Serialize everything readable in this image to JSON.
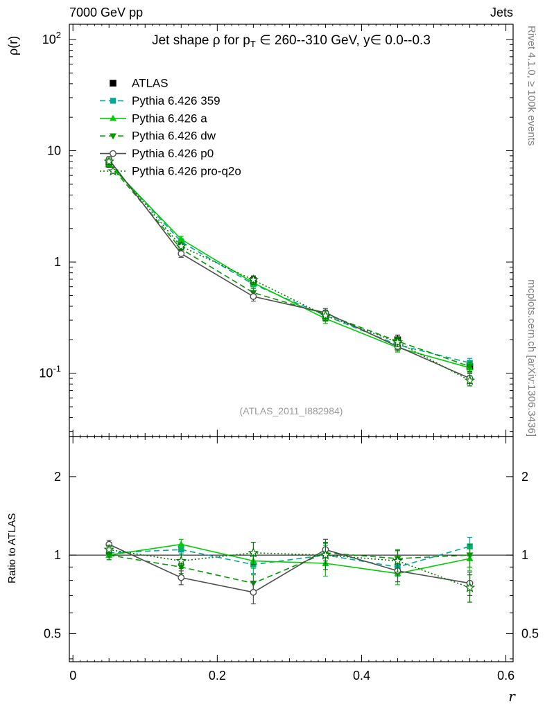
{
  "header": {
    "left": "7000 GeV pp",
    "right": "Jets"
  },
  "sidebar_right": {
    "top": "Rivet 4.1.0, ≥ 100k events",
    "bottom": "mcplots.cern.ch [arXiv:1306.3436]"
  },
  "chart_data": {
    "type": "line",
    "title": {
      "pre": "Jet shape ρ for p",
      "sub": "T",
      "post": " ∈ 260--310 GeV, y∈ 0.0--0.3"
    },
    "xlabel": "r",
    "watermark": "(ATLAS_2011_I882984)",
    "x": [
      0.05,
      0.15,
      0.25,
      0.35,
      0.45,
      0.55
    ],
    "xlim": [
      -0.005,
      0.61
    ],
    "xticks": [
      {
        "v": 0,
        "label": "0"
      },
      {
        "v": 0.2,
        "label": "0.2"
      },
      {
        "v": 0.4,
        "label": "0.4"
      },
      {
        "v": 0.6,
        "label": "0.6"
      }
    ],
    "panels": [
      {
        "ylabel": "ρ(r)",
        "yscale": "log",
        "ylim": [
          0.027,
          137
        ],
        "labels_right": false,
        "yticks": [
          {
            "v": 100,
            "base": "10",
            "exp": "2"
          },
          {
            "v": 10,
            "base": "10"
          },
          {
            "v": 1,
            "base": "1"
          },
          {
            "v": 0.1,
            "base": "10",
            "exp": "-1"
          }
        ]
      },
      {
        "ylabel": "Ratio to ATLAS",
        "yscale": "log",
        "ylim": [
          0.39,
          2.85
        ],
        "labels_right": true,
        "refline": 1,
        "yticks": [
          {
            "v": 2,
            "base": "2"
          },
          {
            "v": 1,
            "base": "1"
          },
          {
            "v": 0.5,
            "base": "0.5"
          }
        ]
      }
    ],
    "series": [
      {
        "id": "atlas",
        "name": "ATLAS",
        "color": "#000000",
        "line": "none",
        "marker": "square-filled",
        "values": [
          7.6,
          1.45,
          0.68,
          0.33,
          0.2,
          0.115
        ],
        "yerr": [
          0.5,
          0.12,
          0.06,
          0.035,
          0.02,
          0.012
        ],
        "ratio": null,
        "ratio_err": null
      },
      {
        "id": "pythia-359",
        "name": "Pythia 6.426 359",
        "color": "#00a79b",
        "line": "dashed",
        "marker": "square-filled",
        "values": [
          7.75,
          1.52,
          0.63,
          0.33,
          0.18,
          0.124
        ],
        "yerr": [
          0.45,
          0.1,
          0.05,
          0.03,
          0.016,
          0.012
        ],
        "ratio": [
          1.02,
          1.05,
          0.92,
          1.0,
          0.9,
          1.08
        ],
        "ratio_err": [
          0.04,
          0.05,
          0.07,
          0.09,
          0.07,
          0.09
        ]
      },
      {
        "id": "pythia-a",
        "name": "Pythia 6.426 a",
        "color": "#00cc00",
        "line": "solid",
        "marker": "triangle-up-filled",
        "values": [
          7.6,
          1.6,
          0.65,
          0.31,
          0.17,
          0.112
        ],
        "yerr": [
          0.45,
          0.1,
          0.05,
          0.03,
          0.015,
          0.011
        ],
        "ratio": [
          1.0,
          1.1,
          0.95,
          0.93,
          0.85,
          0.97
        ],
        "ratio_err": [
          0.04,
          0.05,
          0.06,
          0.1,
          0.08,
          0.1
        ]
      },
      {
        "id": "pythia-dw",
        "name": "Pythia 6.426 dw",
        "color": "#009900",
        "line": "dashed",
        "marker": "triangle-down-filled",
        "values": [
          7.6,
          1.31,
          0.53,
          0.34,
          0.194,
          0.115
        ],
        "yerr": [
          0.45,
          0.1,
          0.05,
          0.03,
          0.017,
          0.011
        ],
        "ratio": [
          1.0,
          0.9,
          0.78,
          1.02,
          0.97,
          1.0
        ],
        "ratio_err": [
          0.04,
          0.05,
          0.06,
          0.09,
          0.08,
          0.1
        ]
      },
      {
        "id": "pythia-p0",
        "name": "Pythia 6.426 p0",
        "color": "#4d4d4d",
        "line": "solid",
        "marker": "circle-open",
        "values": [
          8.35,
          1.19,
          0.49,
          0.35,
          0.174,
          0.09
        ],
        "yerr": [
          0.5,
          0.09,
          0.045,
          0.032,
          0.015,
          0.009
        ],
        "ratio": [
          1.1,
          0.82,
          0.72,
          1.05,
          0.87,
          0.78
        ],
        "ratio_err": [
          0.04,
          0.05,
          0.07,
          0.1,
          0.08,
          0.08
        ]
      },
      {
        "id": "pythia-pro-q2o",
        "name": "Pythia 6.426 pro-q2o",
        "color": "#007700",
        "line": "dotted",
        "marker": "star-open",
        "values": [
          8.0,
          1.38,
          0.69,
          0.33,
          0.19,
          0.086
        ],
        "yerr": [
          0.45,
          0.1,
          0.06,
          0.033,
          0.017,
          0.009
        ],
        "ratio": [
          1.05,
          0.95,
          1.02,
          1.0,
          0.95,
          0.75
        ],
        "ratio_err": [
          0.04,
          0.06,
          0.1,
          0.12,
          0.09,
          0.09
        ]
      }
    ]
  }
}
